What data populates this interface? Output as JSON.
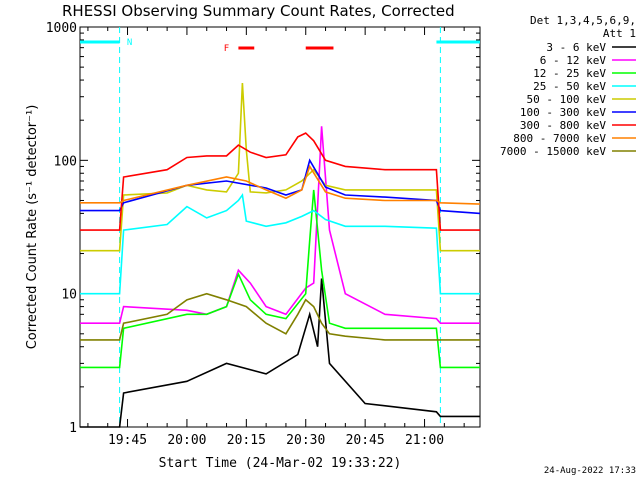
{
  "title": "RHESSI Observing Summary Count Rates, Corrected",
  "date_stamp": "24-Aug-2022 17:33",
  "detector_info": [
    "Det 1,3,4,5,6,9,",
    "Att 1"
  ],
  "chart_data": {
    "type": "line",
    "title": "RHESSI Observing Summary Count Rates, Corrected",
    "xlabel": "Start Time (24-Mar-02 19:33:22)",
    "ylabel": "Corrected Count Rate (s⁻¹ detector⁻¹)",
    "yscale": "log",
    "ylim": [
      1,
      1000
    ],
    "xlim": [
      "19:33",
      "21:14"
    ],
    "x_ticks": [
      "19:45",
      "20:00",
      "20:15",
      "20:30",
      "20:45",
      "21:00"
    ],
    "y_ticks": [
      "1",
      "10",
      "100",
      "1000"
    ],
    "flags": [
      {
        "label": "N",
        "color": "#00ffff",
        "intervals": [
          [
            "19:33",
            "19:43"
          ],
          [
            "21:03",
            "21:14"
          ]
        ]
      },
      {
        "label": "F",
        "color": "#ff0000",
        "intervals": [
          [
            "20:13",
            "20:17"
          ],
          [
            "20:30",
            "20:37"
          ]
        ]
      }
    ],
    "attenuator_changes": [
      "19:43",
      "21:04"
    ],
    "series": [
      {
        "name": "3 - 6 keV",
        "color": "#000000",
        "x": [
          "19:33",
          "19:43",
          "19:44",
          "20:00",
          "20:10",
          "20:20",
          "20:28",
          "20:31",
          "20:33",
          "20:34",
          "20:36",
          "20:45",
          "21:03",
          "21:04",
          "21:14"
        ],
        "y": [
          1,
          1,
          1.8,
          2.2,
          3,
          2.5,
          3.5,
          7,
          4,
          13,
          3,
          1.5,
          1.3,
          1.2,
          1.2
        ]
      },
      {
        "name": "6 - 12 keV",
        "color": "#ff00ff",
        "x": [
          "19:33",
          "19:43",
          "19:44",
          "20:00",
          "20:05",
          "20:10",
          "20:13",
          "20:16",
          "20:20",
          "20:25",
          "20:30",
          "20:32",
          "20:33",
          "20:34",
          "20:36",
          "20:40",
          "20:50",
          "21:03",
          "21:04",
          "21:14"
        ],
        "y": [
          6,
          6,
          8,
          7.5,
          7,
          8,
          15,
          12,
          8,
          7,
          11,
          12,
          45,
          180,
          30,
          10,
          7,
          6.5,
          6,
          6
        ]
      },
      {
        "name": "12 - 25 keV",
        "color": "#00ff00",
        "x": [
          "19:33",
          "19:43",
          "19:44",
          "20:00",
          "20:05",
          "20:10",
          "20:13",
          "20:16",
          "20:20",
          "20:25",
          "20:30",
          "20:31",
          "20:32",
          "20:34",
          "20:36",
          "20:40",
          "20:50",
          "21:03",
          "21:04",
          "21:14"
        ],
        "y": [
          2.8,
          2.8,
          5.5,
          7,
          7,
          8,
          14,
          9,
          7,
          6.5,
          10,
          25,
          60,
          15,
          6,
          5.5,
          5.5,
          5.5,
          2.8,
          2.8
        ]
      },
      {
        "name": "25 - 50 keV",
        "color": "#00ffff",
        "x": [
          "19:33",
          "19:43",
          "19:44",
          "19:55",
          "20:00",
          "20:05",
          "20:10",
          "20:13",
          "20:14",
          "20:15",
          "20:20",
          "20:25",
          "20:29",
          "20:32",
          "20:35",
          "20:40",
          "20:50",
          "21:03",
          "21:04",
          "21:14"
        ],
        "y": [
          10,
          10,
          30,
          33,
          45,
          37,
          42,
          50,
          55,
          35,
          32,
          34,
          38,
          42,
          36,
          32,
          32,
          31,
          10,
          10
        ]
      },
      {
        "name": "50 - 100 keV",
        "color": "#cccc00",
        "x": [
          "19:33",
          "19:43",
          "19:44",
          "19:55",
          "20:00",
          "20:05",
          "20:10",
          "20:13",
          "20:14",
          "20:15",
          "20:16",
          "20:20",
          "20:25",
          "20:29",
          "20:32",
          "20:35",
          "20:40",
          "20:50",
          "21:03",
          "21:04",
          "21:14"
        ],
        "y": [
          21,
          21,
          55,
          57,
          65,
          60,
          58,
          80,
          380,
          120,
          58,
          57,
          60,
          70,
          85,
          65,
          60,
          60,
          60,
          21,
          21
        ]
      },
      {
        "name": "100 - 300 keV",
        "color": "#0000ff",
        "x": [
          "19:33",
          "19:43",
          "19:44",
          "20:00",
          "20:10",
          "20:20",
          "20:25",
          "20:29",
          "20:31",
          "20:35",
          "20:40",
          "20:50",
          "21:03",
          "21:04",
          "21:14"
        ],
        "y": [
          42,
          42,
          48,
          65,
          70,
          62,
          55,
          60,
          100,
          63,
          55,
          53,
          50,
          42,
          40
        ]
      },
      {
        "name": "300 - 800 keV",
        "color": "#ff0000",
        "x": [
          "19:33",
          "19:43",
          "19:44",
          "19:55",
          "20:00",
          "20:05",
          "20:10",
          "20:13",
          "20:16",
          "20:20",
          "20:25",
          "20:28",
          "20:30",
          "20:32",
          "20:35",
          "20:40",
          "20:50",
          "21:03",
          "21:04",
          "21:14"
        ],
        "y": [
          30,
          30,
          75,
          85,
          105,
          108,
          108,
          130,
          115,
          105,
          110,
          150,
          160,
          140,
          100,
          90,
          85,
          85,
          30,
          30
        ]
      },
      {
        "name": "800 - 7000 keV",
        "color": "#ff8000",
        "x": [
          "19:33",
          "19:43",
          "19:44",
          "20:00",
          "20:10",
          "20:15",
          "20:20",
          "20:25",
          "20:29",
          "20:31",
          "20:35",
          "20:40",
          "20:50",
          "21:03",
          "21:04",
          "21:14"
        ],
        "y": [
          48,
          48,
          50,
          65,
          75,
          70,
          60,
          52,
          60,
          90,
          58,
          52,
          50,
          50,
          48,
          47
        ]
      },
      {
        "name": "7000 - 15000 keV",
        "color": "#808000",
        "x": [
          "19:33",
          "19:43",
          "19:44",
          "19:55",
          "20:00",
          "20:05",
          "20:10",
          "20:15",
          "20:20",
          "20:25",
          "20:28",
          "20:30",
          "20:32",
          "20:34",
          "20:36",
          "20:40",
          "20:50",
          "21:03",
          "21:04",
          "21:14"
        ],
        "y": [
          4.5,
          4.5,
          6,
          7,
          9,
          10,
          9,
          8,
          6,
          5,
          7,
          9,
          8,
          6,
          5,
          4.8,
          4.5,
          4.5,
          4.5,
          4.5
        ]
      }
    ]
  }
}
